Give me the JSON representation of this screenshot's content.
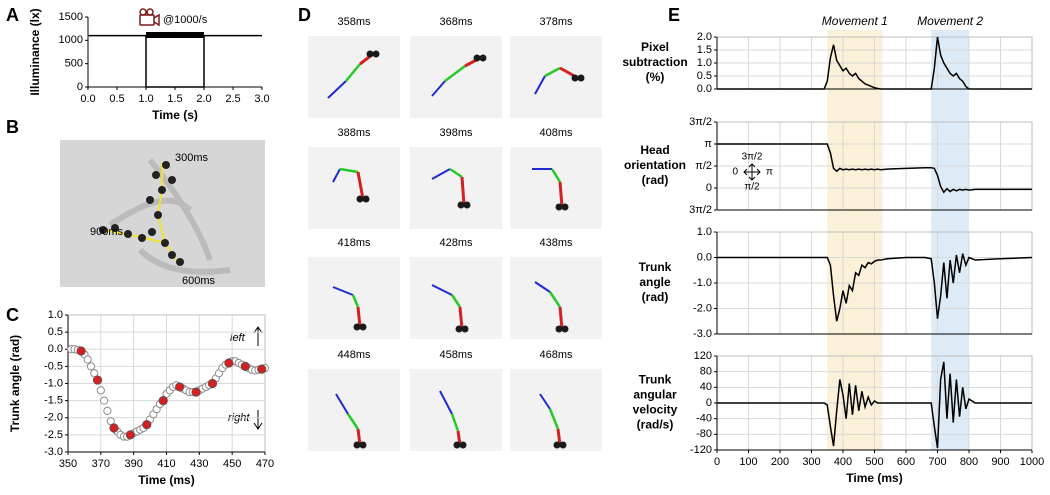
{
  "panel_labels": [
    "A",
    "B",
    "C",
    "D",
    "E"
  ],
  "image_b": {
    "labels": [
      "300ms",
      "900ms",
      "600ms"
    ]
  },
  "image_d": {
    "frames": [
      "358ms",
      "368ms",
      "378ms",
      "388ms",
      "398ms",
      "408ms",
      "418ms",
      "428ms",
      "438ms",
      "448ms",
      "458ms",
      "468ms"
    ]
  },
  "chart_data": [
    {
      "type": "line",
      "xlabel": "Time (s)",
      "ylabel": "Illuminance (lx)",
      "x": [
        0,
        1,
        1,
        2,
        2,
        3
      ],
      "values": [
        1100,
        1100,
        0,
        0,
        1100,
        1100
      ],
      "color": "#000000",
      "xlim": [
        0,
        3
      ],
      "xticks": [
        {
          "value": 0,
          "label": "0.0"
        },
        0.5,
        {
          "value": 1,
          "label": "1.0"
        },
        1.5,
        {
          "value": 2,
          "label": "2.0"
        },
        2.5,
        {
          "value": 3,
          "label": "3.0"
        }
      ],
      "ylim": [
        0,
        1500
      ],
      "yticks": [
        0,
        500,
        1000,
        1500
      ],
      "grid": false,
      "annotation": "@1000/s",
      "recording_window": [
        1,
        2
      ]
    },
    {
      "type": "scatter",
      "xlabel": "Time (ms)",
      "ylabel": "Trunk angle (rad)",
      "x": [
        352,
        354,
        356,
        358,
        360,
        362,
        364,
        366,
        368,
        370,
        372,
        374,
        376,
        378,
        380,
        382,
        384,
        386,
        388,
        390,
        392,
        394,
        396,
        398,
        400,
        402,
        404,
        406,
        408,
        410,
        412,
        414,
        416,
        418,
        420,
        422,
        424,
        426,
        428,
        430,
        432,
        434,
        436,
        438,
        440,
        442,
        444,
        446,
        448,
        450,
        452,
        454,
        456,
        458,
        460,
        462,
        464,
        466,
        468,
        470
      ],
      "values": [
        0.0,
        0.0,
        -0.02,
        -0.05,
        -0.15,
        -0.3,
        -0.5,
        -0.7,
        -0.9,
        -1.2,
        -1.5,
        -1.8,
        -2.1,
        -2.3,
        -2.4,
        -2.5,
        -2.55,
        -2.55,
        -2.5,
        -2.45,
        -2.4,
        -2.35,
        -2.3,
        -2.2,
        -2.05,
        -1.9,
        -1.75,
        -1.6,
        -1.5,
        -1.3,
        -1.2,
        -1.1,
        -1.05,
        -1.1,
        -1.15,
        -1.2,
        -1.25,
        -1.25,
        -1.25,
        -1.2,
        -1.15,
        -1.1,
        -1.05,
        -1.0,
        -0.85,
        -0.7,
        -0.55,
        -0.45,
        -0.4,
        -0.35,
        -0.35,
        -0.4,
        -0.45,
        -0.5,
        -0.55,
        -0.6,
        -0.62,
        -0.6,
        -0.58,
        -0.55
      ],
      "color": "#8c8c8c",
      "highlight": {
        "x": [
          358,
          368,
          378,
          388,
          398,
          408,
          418,
          428,
          438,
          448,
          458,
          468
        ],
        "values": [
          -0.05,
          -0.9,
          -2.3,
          -2.5,
          -2.2,
          -1.5,
          -1.1,
          -1.25,
          -1.0,
          -0.4,
          -0.5,
          -0.58
        ],
        "color": "#d42020"
      },
      "xlim": [
        350,
        470
      ],
      "xticks": [
        350,
        370,
        390,
        410,
        430,
        450,
        470
      ],
      "ylim": [
        -3,
        1
      ],
      "yticks": [
        {
          "value": -3,
          "label": "-3.0"
        },
        -2.5,
        {
          "value": -2,
          "label": "-2.0"
        },
        -1.5,
        {
          "value": -1,
          "label": "-1.0"
        },
        -0.5,
        {
          "value": 0,
          "label": "0.0"
        },
        0.5,
        {
          "value": 1,
          "label": "1.0"
        }
      ],
      "grid": true,
      "annotations": [
        "left",
        "right"
      ]
    },
    {
      "type": "line",
      "ylabel": [
        "Pixel",
        "subtraction",
        "(%)"
      ],
      "x": [
        0,
        100,
        200,
        300,
        340,
        350,
        360,
        370,
        380,
        390,
        400,
        410,
        420,
        430,
        440,
        450,
        460,
        470,
        480,
        490,
        500,
        510,
        520,
        540,
        600,
        660,
        680,
        690,
        700,
        710,
        720,
        730,
        740,
        750,
        760,
        770,
        780,
        790,
        800,
        820,
        900,
        1000
      ],
      "values": [
        0,
        0,
        0,
        0,
        0,
        0.3,
        1.2,
        1.7,
        1.1,
        0.9,
        0.7,
        0.8,
        0.6,
        0.5,
        0.6,
        0.4,
        0.3,
        0.2,
        0.15,
        0.1,
        0.05,
        0.02,
        0,
        0,
        0,
        0,
        0,
        0.8,
        2.0,
        1.3,
        1.0,
        0.8,
        0.6,
        0.5,
        0.6,
        0.4,
        0.3,
        0.1,
        0,
        0,
        0,
        0
      ],
      "color": "#000000",
      "xlim": [
        0,
        1000
      ],
      "ylim": [
        0,
        2
      ],
      "yticks": [
        {
          "value": 0,
          "label": "0.0"
        },
        0.5,
        {
          "value": 1,
          "label": "1.0"
        },
        1.5,
        {
          "value": 2,
          "label": "2.0"
        }
      ],
      "grid": true,
      "spans": [
        {
          "label": "Movement 1",
          "range": [
            350,
            525
          ],
          "color": "#c8642a",
          "fill": "#fbf0d8"
        },
        {
          "label": "Movement 2",
          "range": [
            680,
            800
          ],
          "color": "#3a7dbf",
          "fill": "#dcebf5"
        }
      ]
    },
    {
      "type": "line",
      "ylabel": [
        "Head",
        "orientation",
        "(rad)"
      ],
      "x": [
        0,
        100,
        200,
        300,
        340,
        350,
        360,
        370,
        380,
        390,
        400,
        410,
        420,
        430,
        440,
        450,
        460,
        470,
        480,
        490,
        500,
        510,
        520,
        540,
        600,
        660,
        680,
        690,
        700,
        710,
        720,
        730,
        740,
        750,
        760,
        770,
        780,
        790,
        800,
        820,
        900,
        1000
      ],
      "values": [
        3.14,
        3.14,
        3.14,
        3.14,
        3.14,
        3.14,
        2.5,
        1.4,
        1.2,
        1.4,
        1.3,
        1.35,
        1.3,
        1.35,
        1.3,
        1.35,
        1.3,
        1.35,
        1.3,
        1.35,
        1.3,
        1.35,
        1.3,
        1.35,
        1.4,
        1.45,
        1.45,
        1.4,
        0.9,
        0.1,
        -0.3,
        -0.05,
        -0.25,
        -0.1,
        -0.2,
        -0.1,
        -0.15,
        -0.1,
        -0.15,
        -0.1,
        -0.1,
        -0.1
      ],
      "color": "#000000",
      "xlim": [
        0,
        1000
      ],
      "ylim": [
        -1.5708,
        4.7124
      ],
      "yticks": [
        {
          "value": -1.5708,
          "label": "3π/2"
        },
        0,
        {
          "value": 1.5708,
          "label": "π/2"
        },
        {
          "value": 3.1416,
          "label": "π"
        },
        {
          "value": 4.7124,
          "label": "3π/2"
        }
      ],
      "grid": true,
      "inset_labels": [
        "3π/2",
        "0",
        "π",
        "π/2"
      ]
    },
    {
      "type": "line",
      "ylabel": [
        "Trunk",
        "angle",
        "(rad)"
      ],
      "x": [
        0,
        100,
        200,
        300,
        340,
        350,
        360,
        370,
        380,
        390,
        400,
        410,
        420,
        430,
        440,
        450,
        460,
        470,
        480,
        490,
        500,
        510,
        520,
        540,
        600,
        660,
        680,
        690,
        700,
        710,
        720,
        730,
        740,
        750,
        760,
        770,
        780,
        790,
        800,
        820,
        900,
        1000
      ],
      "values": [
        0,
        0,
        0,
        0,
        0,
        0,
        -0.3,
        -1.5,
        -2.5,
        -2.0,
        -1.3,
        -1.8,
        -1.1,
        -1.3,
        -0.6,
        -0.7,
        -0.3,
        -0.4,
        -0.2,
        -0.25,
        -0.15,
        -0.1,
        -0.1,
        -0.05,
        0,
        0,
        -0.05,
        -1.0,
        -2.4,
        -1.5,
        -0.2,
        -1.6,
        -0.1,
        -1.0,
        0.1,
        -0.6,
        0.15,
        -0.3,
        0,
        -0.1,
        -0.05,
        0
      ],
      "color": "#000000",
      "xlim": [
        0,
        1000
      ],
      "ylim": [
        -3,
        1
      ],
      "yticks": [
        {
          "value": -3,
          "label": "-3.0"
        },
        {
          "value": -2,
          "label": "-2.0"
        },
        {
          "value": -1,
          "label": "-1.0"
        },
        {
          "value": 0,
          "label": "0.0"
        },
        {
          "value": 1,
          "label": "1.0"
        }
      ],
      "grid": true
    },
    {
      "type": "line",
      "ylabel": [
        "Trunk",
        "angular",
        "velocity",
        "(rad/s)"
      ],
      "xlabel": "Time (ms)",
      "x": [
        0,
        100,
        200,
        300,
        340,
        350,
        360,
        370,
        380,
        390,
        400,
        410,
        420,
        430,
        440,
        450,
        460,
        470,
        480,
        490,
        500,
        510,
        520,
        540,
        600,
        660,
        680,
        690,
        700,
        710,
        720,
        730,
        740,
        750,
        760,
        770,
        780,
        790,
        800,
        820,
        900,
        1000
      ],
      "values": [
        0,
        0,
        0,
        0,
        0,
        -5,
        -60,
        -110,
        -20,
        60,
        20,
        -40,
        50,
        -30,
        45,
        -20,
        30,
        -10,
        15,
        -5,
        5,
        0,
        0,
        0,
        0,
        0,
        0,
        -60,
        -115,
        60,
        105,
        -40,
        75,
        -50,
        60,
        -35,
        40,
        -15,
        10,
        0,
        0,
        0
      ],
      "color": "#000000",
      "xlim": [
        0,
        1000
      ],
      "xticks": [
        0,
        100,
        200,
        300,
        400,
        500,
        600,
        700,
        800,
        900,
        1000
      ],
      "ylim": [
        -120,
        120
      ],
      "yticks": [
        -120,
        -80,
        -40,
        0,
        40,
        80,
        120
      ],
      "grid": true
    }
  ]
}
